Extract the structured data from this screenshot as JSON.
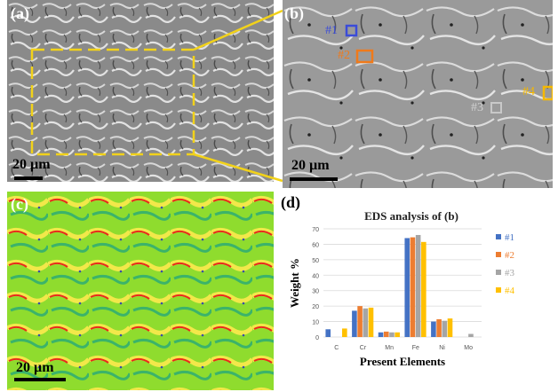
{
  "panels": {
    "a": {
      "label": "(a)",
      "scale_bar": "20 µm"
    },
    "b": {
      "label": "(b)",
      "scale_bar": "20 µm",
      "markers": [
        {
          "label": "#1",
          "color": "#3b4cd8"
        },
        {
          "label": "#2",
          "color": "#f07a1a"
        },
        {
          "label": "#3",
          "color": "#c8c8c8"
        },
        {
          "label": "#4",
          "color": "#f5b800"
        }
      ]
    },
    "c": {
      "label": "(c)",
      "scale_bar": "20 µm"
    },
    "d": {
      "label": "(d)"
    }
  },
  "colors": {
    "zoom_box": "#f2d21a",
    "sem_bg": "#8f8f8f",
    "map_green": "#8fdc2e"
  },
  "chart_data": {
    "type": "bar",
    "title": "EDS analysis of (b)",
    "xlabel": "Present Elements",
    "ylabel": "Weight %",
    "ylim": [
      0,
      70
    ],
    "yticks": [
      0,
      10,
      20,
      30,
      40,
      50,
      60,
      70
    ],
    "categories": [
      "C",
      "Cr",
      "Mn",
      "Fe",
      "Ni",
      "Mo"
    ],
    "legend_position": "right",
    "grid": true,
    "series": [
      {
        "name": "#1",
        "color": "#4472c4",
        "values": [
          5,
          17,
          3,
          64,
          10,
          0
        ]
      },
      {
        "name": "#2",
        "color": "#ed7d31",
        "values": [
          0,
          20,
          3.5,
          64.5,
          11.5,
          0
        ]
      },
      {
        "name": "#3",
        "color": "#a5a5a5",
        "values": [
          0,
          18.5,
          3,
          66,
          10.5,
          2
        ]
      },
      {
        "name": "#4",
        "color": "#ffc000",
        "values": [
          5.5,
          19,
          3,
          61.5,
          12,
          0
        ]
      }
    ]
  }
}
